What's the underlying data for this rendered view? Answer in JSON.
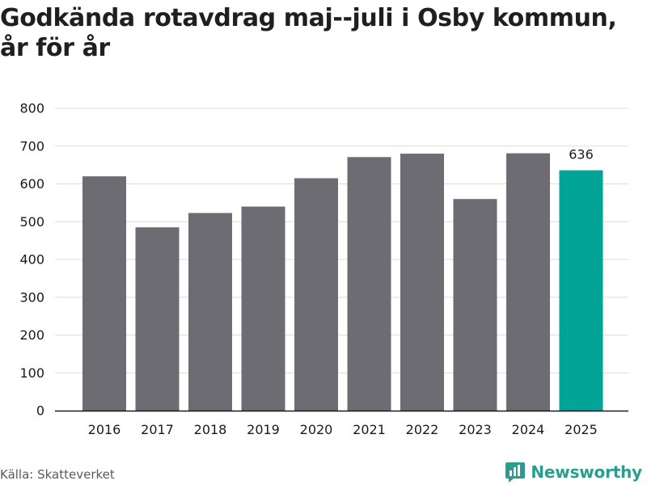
{
  "title": "Godkända rotavdrag maj--juli i Osby kommun, år för år",
  "source": "Källa: Skatteverket",
  "brand": "Newsworthy",
  "colors": {
    "bar": "#6d6c72",
    "highlight": "#00a598",
    "grid": "#dcdcdc",
    "axis": "#1a1a1a",
    "brand": "#2a9d8f"
  },
  "chart_data": {
    "type": "bar",
    "title": "Godkända rotavdrag maj--juli i Osby kommun, år för år",
    "categories": [
      "2016",
      "2017",
      "2018",
      "2019",
      "2020",
      "2021",
      "2022",
      "2023",
      "2024",
      "2025"
    ],
    "values": [
      620,
      485,
      523,
      540,
      615,
      671,
      680,
      560,
      681,
      636
    ],
    "ylim": [
      0,
      800
    ],
    "yticks": [
      0,
      100,
      200,
      300,
      400,
      500,
      600,
      700,
      800
    ],
    "grid": true,
    "highlight_category": "2025",
    "data_labels": [
      {
        "category": "2025",
        "text": "636"
      }
    ]
  }
}
